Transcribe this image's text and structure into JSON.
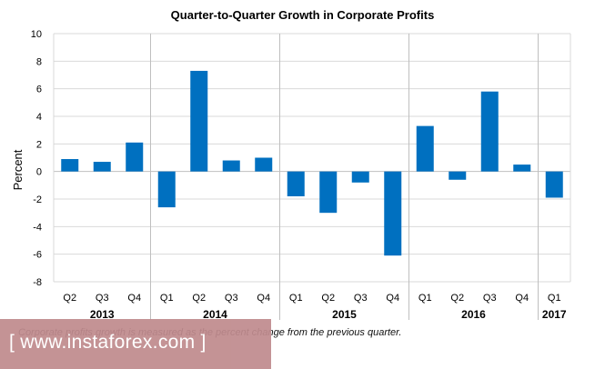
{
  "chart_data": {
    "type": "bar",
    "title": "Quarter-to-Quarter Growth in Corporate Profits",
    "ylabel": "Percent",
    "ylim": [
      -8,
      10
    ],
    "yticks": [
      "10",
      "8",
      "6",
      "4",
      "2",
      "0",
      "-2",
      "-4",
      "-6",
      "-8"
    ],
    "categories": [
      "Q2",
      "Q3",
      "Q4",
      "Q1",
      "Q2",
      "Q3",
      "Q4",
      "Q1",
      "Q2",
      "Q3",
      "Q4",
      "Q1",
      "Q2",
      "Q3",
      "Q4",
      "Q1"
    ],
    "values": [
      0.9,
      0.7,
      2.1,
      -2.6,
      7.3,
      0.8,
      1.0,
      -1.8,
      -3.0,
      -0.8,
      -6.1,
      3.3,
      -0.6,
      5.8,
      0.5,
      -1.9
    ],
    "years": [
      {
        "label": "2013",
        "start": 0,
        "end": 2
      },
      {
        "label": "2014",
        "start": 3,
        "end": 6
      },
      {
        "label": "2015",
        "start": 7,
        "end": 10
      },
      {
        "label": "2016",
        "start": 11,
        "end": 14
      },
      {
        "label": "2017",
        "start": 15,
        "end": 15
      }
    ],
    "grid": true,
    "bar_color": "#0070c0"
  },
  "footnote": "Corporate profits growth is measured as the percent change from the previous quarter.",
  "watermark": "[ www.instaforex.com ]"
}
